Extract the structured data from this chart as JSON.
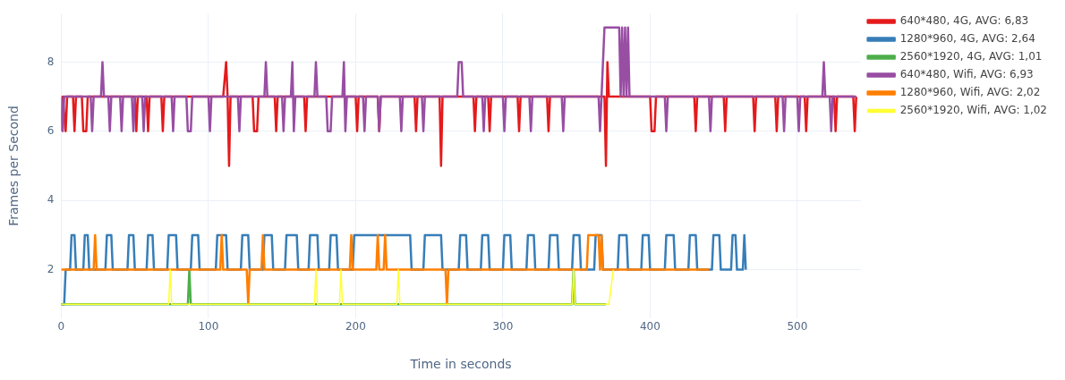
{
  "chart_data": {
    "type": "line",
    "xlabel": "Time in seconds",
    "ylabel": "Frames per Second",
    "xlim": [
      0,
      543
    ],
    "xticks": [
      0,
      100,
      200,
      300,
      400,
      500
    ],
    "ylim": [
      0.6,
      9.4
    ],
    "yticks": [
      2,
      4,
      6,
      8
    ],
    "grid": true,
    "legend": "top right",
    "marker": "none",
    "line_style": "solid",
    "series": [
      {
        "name": "640*480, 4G, AVG: 6,83",
        "color": "#e41a1c",
        "x": [
          0,
          1,
          3,
          4,
          8,
          9,
          10,
          14,
          15,
          17,
          18,
          50,
          51,
          52,
          58,
          59,
          60,
          68,
          69,
          70,
          110,
          112,
          113,
          114,
          115,
          130,
          131,
          133,
          134,
          145,
          146,
          147,
          165,
          166,
          167,
          200,
          201,
          202,
          215,
          216,
          217,
          240,
          241,
          242,
          257,
          258,
          259,
          280,
          281,
          282,
          290,
          291,
          292,
          310,
          311,
          312,
          330,
          331,
          332,
          369,
          370,
          371,
          372,
          400,
          401,
          403,
          404,
          430,
          431,
          432,
          450,
          451,
          452,
          470,
          471,
          472,
          485,
          486,
          487,
          505,
          506,
          507,
          525,
          526,
          527,
          538,
          539,
          540
        ],
        "values": [
          6,
          7,
          6,
          7,
          7,
          6,
          7,
          7,
          6,
          6,
          7,
          7,
          6,
          7,
          7,
          6,
          7,
          7,
          6,
          7,
          7,
          8,
          7,
          5,
          7,
          7,
          6,
          6,
          7,
          7,
          6,
          7,
          7,
          6,
          7,
          7,
          6,
          7,
          7,
          6,
          7,
          7,
          6,
          7,
          7,
          5,
          7,
          7,
          6,
          7,
          7,
          6,
          7,
          7,
          6,
          7,
          7,
          6,
          7,
          7,
          5,
          8,
          7,
          7,
          6,
          6,
          7,
          7,
          6,
          7,
          7,
          6,
          7,
          7,
          6,
          7,
          7,
          6,
          7,
          7,
          6,
          7,
          7,
          6,
          7,
          7,
          6,
          7
        ]
      },
      {
        "name": "1280*960, 4G, AVG: 2,64",
        "color": "#377eb8",
        "x": [
          0,
          2,
          3,
          6,
          7,
          9,
          10,
          15,
          16,
          18,
          19,
          30,
          31,
          34,
          35,
          45,
          46,
          49,
          50,
          58,
          59,
          62,
          63,
          72,
          73,
          78,
          79,
          88,
          89,
          93,
          94,
          105,
          106,
          112,
          113,
          122,
          123,
          127,
          128,
          137,
          138,
          143,
          144,
          152,
          153,
          160,
          161,
          168,
          169,
          174,
          175,
          182,
          183,
          187,
          188,
          198,
          199,
          237,
          238,
          246,
          247,
          258,
          259,
          270,
          271,
          275,
          276,
          285,
          286,
          290,
          291,
          300,
          301,
          305,
          306,
          316,
          317,
          321,
          322,
          331,
          332,
          337,
          338,
          347,
          348,
          352,
          353,
          362,
          363,
          367,
          368,
          378,
          379,
          384,
          385,
          394,
          395,
          399,
          400,
          410,
          411,
          416,
          417,
          426,
          427,
          431,
          432,
          442,
          443,
          447,
          448,
          455,
          456,
          458,
          459,
          463,
          464,
          465
        ],
        "values": [
          1,
          1,
          2,
          2,
          3,
          3,
          2,
          2,
          3,
          3,
          2,
          2,
          3,
          3,
          2,
          2,
          3,
          3,
          2,
          2,
          3,
          3,
          2,
          2,
          3,
          3,
          2,
          2,
          3,
          3,
          2,
          2,
          3,
          3,
          2,
          2,
          3,
          3,
          2,
          2,
          3,
          3,
          2,
          2,
          3,
          3,
          2,
          2,
          3,
          3,
          2,
          2,
          3,
          3,
          2,
          2,
          3,
          3,
          2,
          2,
          3,
          3,
          2,
          2,
          3,
          3,
          2,
          2,
          3,
          3,
          2,
          2,
          3,
          3,
          2,
          2,
          3,
          3,
          2,
          2,
          3,
          3,
          2,
          2,
          3,
          3,
          2,
          2,
          3,
          3,
          2,
          2,
          3,
          3,
          2,
          2,
          3,
          3,
          2,
          2,
          3,
          3,
          2,
          2,
          3,
          3,
          2,
          2,
          3,
          3,
          2,
          2,
          3,
          3,
          2,
          2,
          3,
          2
        ]
      },
      {
        "name": "2560*1920, 4G, AVG: 1,01",
        "color": "#4daf4a",
        "x": [
          0,
          86,
          87,
          88,
          347,
          348,
          349,
          370
        ],
        "values": [
          1,
          1,
          2,
          1,
          1,
          2,
          1,
          1
        ]
      },
      {
        "name": "640*480, Wifi, AVG: 6,93",
        "color": "#984ea3",
        "x": [
          0,
          1,
          2,
          20,
          21,
          22,
          27,
          28,
          29,
          32,
          33,
          34,
          40,
          41,
          42,
          48,
          49,
          50,
          55,
          56,
          57,
          75,
          76,
          77,
          85,
          86,
          88,
          89,
          100,
          101,
          102,
          120,
          121,
          122,
          138,
          139,
          140,
          150,
          151,
          152,
          156,
          157,
          158,
          159,
          172,
          173,
          174,
          180,
          181,
          183,
          184,
          191,
          192,
          193,
          194,
          205,
          206,
          207,
          215,
          216,
          217,
          230,
          231,
          232,
          245,
          246,
          247,
          269,
          270,
          272,
          273,
          286,
          287,
          288,
          300,
          301,
          302,
          318,
          319,
          320,
          340,
          341,
          342,
          365,
          366,
          367,
          369,
          379,
          380,
          381,
          382,
          383,
          384,
          385,
          386,
          410,
          411,
          412,
          440,
          441,
          442,
          490,
          491,
          492,
          500,
          501,
          502,
          517,
          518,
          519,
          522,
          523,
          524,
          540
        ],
        "values": [
          7,
          6,
          7,
          7,
          6,
          7,
          7,
          8,
          7,
          7,
          6,
          7,
          7,
          6,
          7,
          7,
          6,
          7,
          7,
          6,
          7,
          7,
          6,
          7,
          7,
          6,
          6,
          7,
          7,
          6,
          7,
          7,
          6,
          7,
          7,
          8,
          7,
          7,
          6,
          7,
          7,
          8,
          6,
          7,
          7,
          8,
          7,
          7,
          6,
          6,
          7,
          7,
          8,
          6,
          7,
          7,
          6,
          7,
          7,
          6,
          7,
          7,
          6,
          7,
          7,
          6,
          7,
          7,
          8,
          8,
          7,
          7,
          6,
          7,
          7,
          6,
          7,
          7,
          6,
          7,
          7,
          6,
          7,
          7,
          6,
          7,
          9,
          9,
          7,
          9,
          7,
          9,
          7,
          9,
          7,
          7,
          6,
          7,
          7,
          6,
          7,
          7,
          6,
          7,
          7,
          6,
          7,
          7,
          8,
          7,
          7,
          6,
          7,
          7
        ]
      },
      {
        "name": "1280*960, Wifi, AVG: 2,02",
        "color": "#ff7f00",
        "x": [
          0,
          22,
          23,
          24,
          108,
          109,
          110,
          126,
          127,
          128,
          136,
          137,
          138,
          196,
          197,
          198,
          214,
          215,
          216,
          219,
          220,
          221,
          261,
          262,
          263,
          357,
          358,
          365,
          366,
          367,
          368,
          440
        ],
        "values": [
          2,
          2,
          3,
          2,
          2,
          3,
          2,
          2,
          1,
          2,
          2,
          3,
          2,
          2,
          3,
          2,
          2,
          3,
          2,
          2,
          3,
          2,
          2,
          1,
          2,
          2,
          3,
          3,
          2,
          3,
          2,
          2
        ]
      },
      {
        "name": "2560*1920, Wifi, AVG: 1,02",
        "color": "#ffff33",
        "x": [
          0,
          73,
          74,
          75,
          172,
          173,
          174,
          189,
          190,
          191,
          228,
          229,
          230,
          347,
          348,
          349,
          372,
          375
        ],
        "values": [
          1,
          1,
          2,
          1,
          1,
          2,
          1,
          1,
          2,
          1,
          1,
          2,
          1,
          1,
          2,
          1,
          1,
          2
        ]
      }
    ]
  }
}
